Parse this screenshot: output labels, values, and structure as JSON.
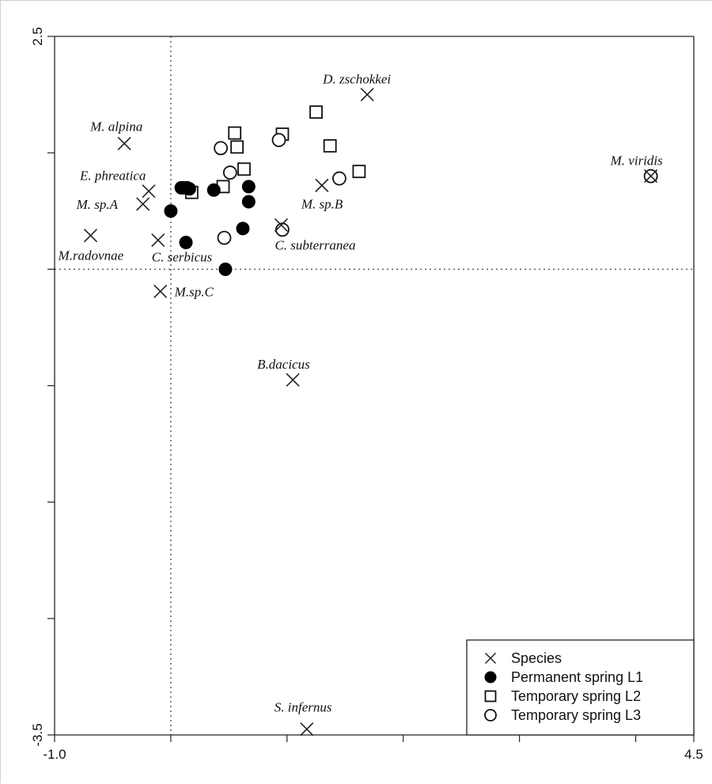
{
  "chart_data": {
    "type": "scatter",
    "title": "",
    "xlabel": "",
    "ylabel": "",
    "xlim": [
      -1.0,
      4.5
    ],
    "ylim": [
      -3.5,
      2.5
    ],
    "x_tick_labels": [
      "-1.0",
      "4.5"
    ],
    "y_tick_labels": [
      "2.5",
      "-3.5"
    ],
    "x_ticks": [
      -1.0,
      0.0,
      1.0,
      2.0,
      3.0,
      4.0,
      4.5
    ],
    "y_ticks": [
      2.5,
      1.5,
      0.5,
      -0.5,
      -1.5,
      -2.5,
      -3.5
    ],
    "reference_lines": {
      "x": 0.0,
      "y": 0.5
    },
    "grid": false,
    "legend_position": "bottom-right",
    "series": [
      {
        "name": "Species",
        "marker": "x",
        "points": [
          {
            "label": "D. zschokkei",
            "x": 1.69,
            "y": 2.0
          },
          {
            "label": "M. alpina",
            "x": -0.4,
            "y": 1.58
          },
          {
            "label": "M. viridis",
            "x": 4.13,
            "y": 1.3
          },
          {
            "label": "E. phreatica",
            "x": -0.19,
            "y": 1.17
          },
          {
            "label": "M. sp.A",
            "x": -0.24,
            "y": 1.06
          },
          {
            "label": "M. sp.B",
            "x": 1.3,
            "y": 1.22
          },
          {
            "label": "M.radovnae",
            "x": -0.69,
            "y": 0.79
          },
          {
            "label": "C. serbicus",
            "x": -0.11,
            "y": 0.75
          },
          {
            "label": "C. subterranea",
            "x": 0.95,
            "y": 0.88
          },
          {
            "label": "M.sp.C",
            "x": -0.09,
            "y": 0.31
          },
          {
            "label": "B.dacicus",
            "x": 1.05,
            "y": -0.45
          },
          {
            "label": "S. infernus",
            "x": 1.17,
            "y": -3.45
          }
        ]
      },
      {
        "name": "Permanent spring L1",
        "marker": "filled-circle",
        "points": [
          {
            "x": 0.09,
            "y": 1.2
          },
          {
            "x": 0.11,
            "y": 1.2
          },
          {
            "x": 0.14,
            "y": 1.2
          },
          {
            "x": 0.16,
            "y": 1.19
          },
          {
            "x": 0.0,
            "y": 1.0
          },
          {
            "x": 0.13,
            "y": 0.73
          },
          {
            "x": 0.37,
            "y": 1.18
          },
          {
            "x": 0.62,
            "y": 0.85
          },
          {
            "x": 0.67,
            "y": 1.21
          },
          {
            "x": 0.67,
            "y": 1.08
          },
          {
            "x": 0.47,
            "y": 0.5
          }
        ]
      },
      {
        "name": "Temporary spring L2",
        "marker": "open-square",
        "points": [
          {
            "x": 0.55,
            "y": 1.67
          },
          {
            "x": 0.57,
            "y": 1.55
          },
          {
            "x": 0.63,
            "y": 1.36
          },
          {
            "x": 0.45,
            "y": 1.21
          },
          {
            "x": 0.18,
            "y": 1.16
          },
          {
            "x": 0.96,
            "y": 1.66
          },
          {
            "x": 1.25,
            "y": 1.85
          },
          {
            "x": 1.37,
            "y": 1.56
          },
          {
            "x": 1.62,
            "y": 1.34
          }
        ]
      },
      {
        "name": "Temporary spring L3",
        "marker": "open-circle",
        "points": [
          {
            "x": 0.43,
            "y": 1.54
          },
          {
            "x": 0.51,
            "y": 1.33
          },
          {
            "x": 0.46,
            "y": 0.77
          },
          {
            "x": 0.93,
            "y": 1.61
          },
          {
            "x": 1.45,
            "y": 1.28
          },
          {
            "x": 0.96,
            "y": 0.84
          },
          {
            "x": 4.13,
            "y": 1.3
          }
        ]
      }
    ]
  }
}
